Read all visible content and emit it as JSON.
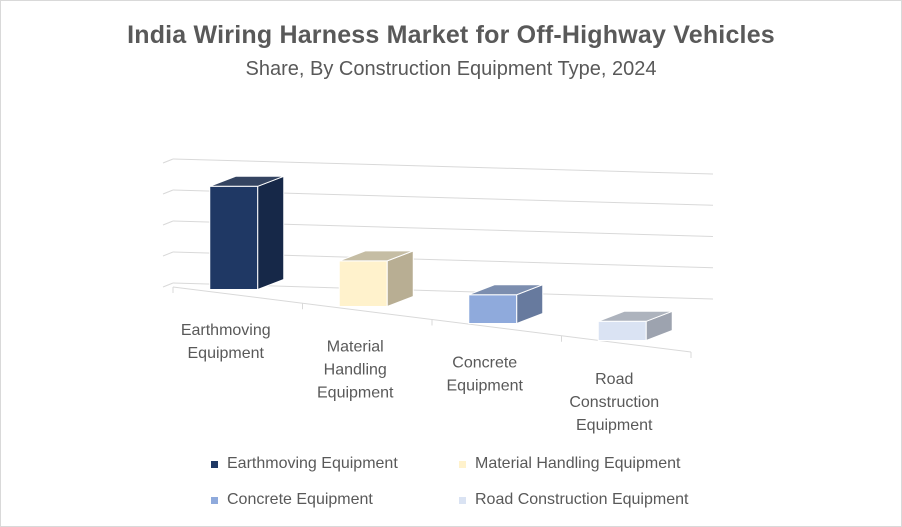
{
  "chart_data": {
    "type": "bar",
    "title": "India Wiring Harness Market for Off-Highway Vehicles",
    "subtitle": "Share, By Construction Equipment Type, 2024",
    "categories": [
      "Earthmoving Equipment",
      "Material Handling Equipment",
      "Concrete Equipment",
      "Road Construction Equipment"
    ],
    "category_label_lines": [
      [
        "Earthmoving",
        "Equipment"
      ],
      [
        "Material",
        "Handling",
        "Equipment"
      ],
      [
        "Concrete",
        "Equipment"
      ],
      [
        "Road",
        "Construction",
        "Equipment"
      ]
    ],
    "series": [
      {
        "values": [
          43,
          19,
          12,
          8
        ]
      }
    ],
    "colors": [
      "#1f3864",
      "#fff2cc",
      "#8faadc",
      "#dae3f3"
    ],
    "ylim": [
      0,
      50
    ],
    "grid": true,
    "legend": {
      "position": "bottom",
      "entries": [
        "Earthmoving Equipment",
        "Material Handling Equipment",
        "Concrete Equipment",
        "Road Construction Equipment"
      ]
    }
  }
}
